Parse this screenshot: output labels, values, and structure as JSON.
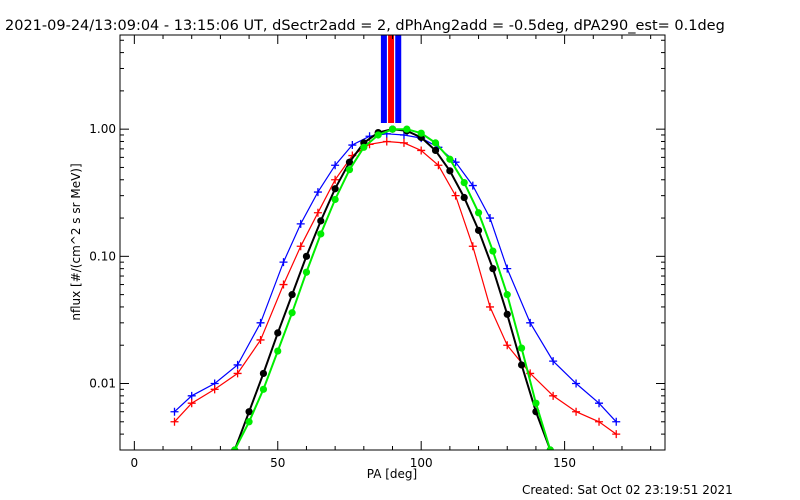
{
  "chart_data": {
    "type": "line",
    "title": "2021-09-24/13:09:04 - 13:15:06 UT, dSectr2add = 2, dPhAng2add = -0.5deg, dPA290_est=  0.1deg",
    "xlabel": "PA [deg]",
    "ylabel": "nflux [#/(cm^2 s sr MeV)]",
    "footer": "Created: Sat Oct 02 23:19:51 2021",
    "xlim": [
      -5,
      185
    ],
    "ylim": [
      0.003,
      5.5
    ],
    "ylog": true,
    "x_ticks": [
      0,
      50,
      100,
      150
    ],
    "x_tick_labels": [
      "0",
      "50",
      "100",
      "150"
    ],
    "y_ticks": [
      0.01,
      0.1,
      1.0
    ],
    "y_tick_labels": [
      "0.01",
      "0.10",
      "1.00"
    ],
    "series": [
      {
        "marker": "plus",
        "color": "#0000ff",
        "x": [
          14,
          20,
          28,
          36,
          44,
          52,
          58,
          64,
          70,
          76,
          82,
          88,
          94,
          100,
          106,
          112,
          118,
          124,
          130,
          138,
          146,
          154,
          162,
          168
        ],
        "y": [
          0.006,
          0.008,
          0.01,
          0.014,
          0.03,
          0.09,
          0.18,
          0.32,
          0.52,
          0.75,
          0.88,
          0.92,
          0.9,
          0.85,
          0.72,
          0.55,
          0.36,
          0.2,
          0.08,
          0.03,
          0.015,
          0.01,
          0.007,
          0.005
        ]
      },
      {
        "marker": "plus",
        "color": "#ff0000",
        "x": [
          14,
          20,
          28,
          36,
          44,
          52,
          58,
          64,
          70,
          76,
          82,
          88,
          94,
          100,
          106,
          112,
          118,
          124,
          130,
          138,
          146,
          154,
          162,
          168
        ],
        "y": [
          0.005,
          0.007,
          0.009,
          0.012,
          0.022,
          0.06,
          0.12,
          0.22,
          0.4,
          0.62,
          0.76,
          0.8,
          0.78,
          0.68,
          0.52,
          0.3,
          0.12,
          0.04,
          0.02,
          0.012,
          0.008,
          0.006,
          0.005,
          0.004
        ]
      },
      {
        "marker": "circle",
        "color": "#000000",
        "x": [
          35,
          40,
          45,
          50,
          55,
          60,
          65,
          70,
          75,
          80,
          85,
          90,
          95,
          100,
          105,
          110,
          115,
          120,
          125,
          130,
          135,
          140,
          145
        ],
        "y": [
          0.003,
          0.006,
          0.012,
          0.025,
          0.05,
          0.1,
          0.19,
          0.34,
          0.55,
          0.78,
          0.94,
          1.0,
          0.97,
          0.86,
          0.68,
          0.47,
          0.29,
          0.16,
          0.08,
          0.035,
          0.014,
          0.006,
          0.003
        ]
      },
      {
        "marker": "circle",
        "color": "#00ee00",
        "x": [
          35,
          40,
          45,
          50,
          55,
          60,
          65,
          70,
          75,
          80,
          85,
          90,
          95,
          100,
          105,
          110,
          115,
          120,
          125,
          130,
          135,
          140,
          145
        ],
        "y": [
          0.003,
          0.005,
          0.009,
          0.018,
          0.036,
          0.075,
          0.15,
          0.28,
          0.48,
          0.72,
          0.9,
          1.0,
          1.0,
          0.93,
          0.78,
          0.58,
          0.38,
          0.22,
          0.11,
          0.05,
          0.019,
          0.007,
          0.003
        ]
      }
    ],
    "vertical_bands": [
      {
        "x": 87.0,
        "color": "#0000ff"
      },
      {
        "x": 89.5,
        "color": "#ff0000"
      },
      {
        "x": 92.0,
        "color": "#0000ff"
      }
    ]
  }
}
